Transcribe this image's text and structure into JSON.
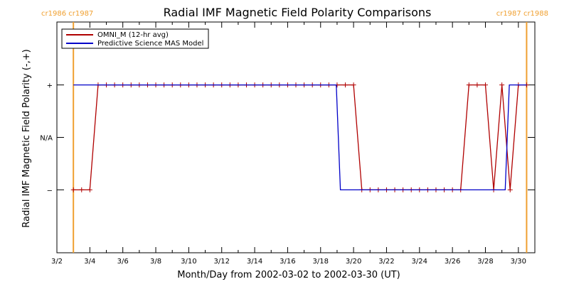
{
  "chart_data": {
    "type": "line",
    "title": "Radial IMF Magnetic Field Polarity Comparisons",
    "xlabel": "Month/Day from 2002-03-02 to 2002-03-30 (UT)",
    "ylabel": "Radial IMF Magnetic Field Polarity (-,+)",
    "xlim": [
      2.0,
      31.0
    ],
    "ylim": [
      -2.2,
      2.2
    ],
    "x_ticks": [
      {
        "value": 2,
        "label": "3/2"
      },
      {
        "value": 4,
        "label": "3/4"
      },
      {
        "value": 6,
        "label": "3/6"
      },
      {
        "value": 8,
        "label": "3/8"
      },
      {
        "value": 10,
        "label": "3/10"
      },
      {
        "value": 12,
        "label": "3/12"
      },
      {
        "value": 14,
        "label": "3/14"
      },
      {
        "value": 16,
        "label": "3/16"
      },
      {
        "value": 18,
        "label": "3/18"
      },
      {
        "value": 20,
        "label": "3/20"
      },
      {
        "value": 22,
        "label": "3/22"
      },
      {
        "value": 24,
        "label": "3/24"
      },
      {
        "value": 26,
        "label": "3/26"
      },
      {
        "value": 28,
        "label": "3/28"
      },
      {
        "value": 30,
        "label": "3/30"
      }
    ],
    "y_ticks": [
      {
        "value": 1,
        "label": "+"
      },
      {
        "value": 0,
        "label": "N/A"
      },
      {
        "value": -1,
        "label": "−"
      }
    ],
    "carrington_markers": [
      {
        "x": 3.0,
        "label": "cr1986 cr1987",
        "anchor": "start"
      },
      {
        "x": 30.5,
        "label": "cr1987 cr1988",
        "anchor": "end"
      }
    ],
    "legend": {
      "placement": "top-left",
      "entries": [
        {
          "name": "OMNI_M (12-hr avg)",
          "color": "#b00000"
        },
        {
          "name": "Predictive Science MAS Model",
          "color": "#0000c8"
        }
      ]
    },
    "series": [
      {
        "name": "OMNI_M (12-hr avg)",
        "color": "#b00000",
        "marker": "+",
        "x": [
          3.0,
          3.5,
          4.0,
          4.5,
          5.0,
          5.5,
          6.0,
          6.5,
          7.0,
          7.5,
          8.0,
          8.5,
          9.0,
          9.5,
          10.0,
          10.5,
          11.0,
          11.5,
          12.0,
          12.5,
          13.0,
          13.5,
          14.0,
          14.5,
          15.0,
          15.5,
          16.0,
          16.5,
          17.0,
          17.5,
          18.0,
          18.5,
          19.0,
          19.5,
          20.0,
          20.5,
          21.0,
          21.5,
          22.0,
          22.5,
          23.0,
          23.5,
          24.0,
          24.5,
          25.0,
          25.5,
          26.0,
          26.5,
          27.0,
          27.5,
          28.0,
          28.5,
          29.0,
          29.5,
          30.0,
          30.5
        ],
        "y": [
          -1,
          -1,
          -1,
          1,
          1,
          1,
          1,
          1,
          1,
          1,
          1,
          1,
          1,
          1,
          1,
          1,
          1,
          1,
          1,
          1,
          1,
          1,
          1,
          1,
          1,
          1,
          1,
          1,
          1,
          1,
          1,
          1,
          1,
          1,
          1,
          -1,
          -1,
          -1,
          -1,
          -1,
          -1,
          -1,
          -1,
          -1,
          -1,
          -1,
          -1,
          -1,
          1,
          1,
          1,
          -1,
          1,
          -1,
          1,
          1
        ]
      },
      {
        "name": "Predictive Science MAS Model",
        "color": "#0000c8",
        "marker": "none",
        "x": [
          3.0,
          18.95,
          19.2,
          29.2,
          29.45,
          30.5
        ],
        "y": [
          1,
          1,
          -1,
          -1,
          1,
          1
        ]
      }
    ]
  }
}
